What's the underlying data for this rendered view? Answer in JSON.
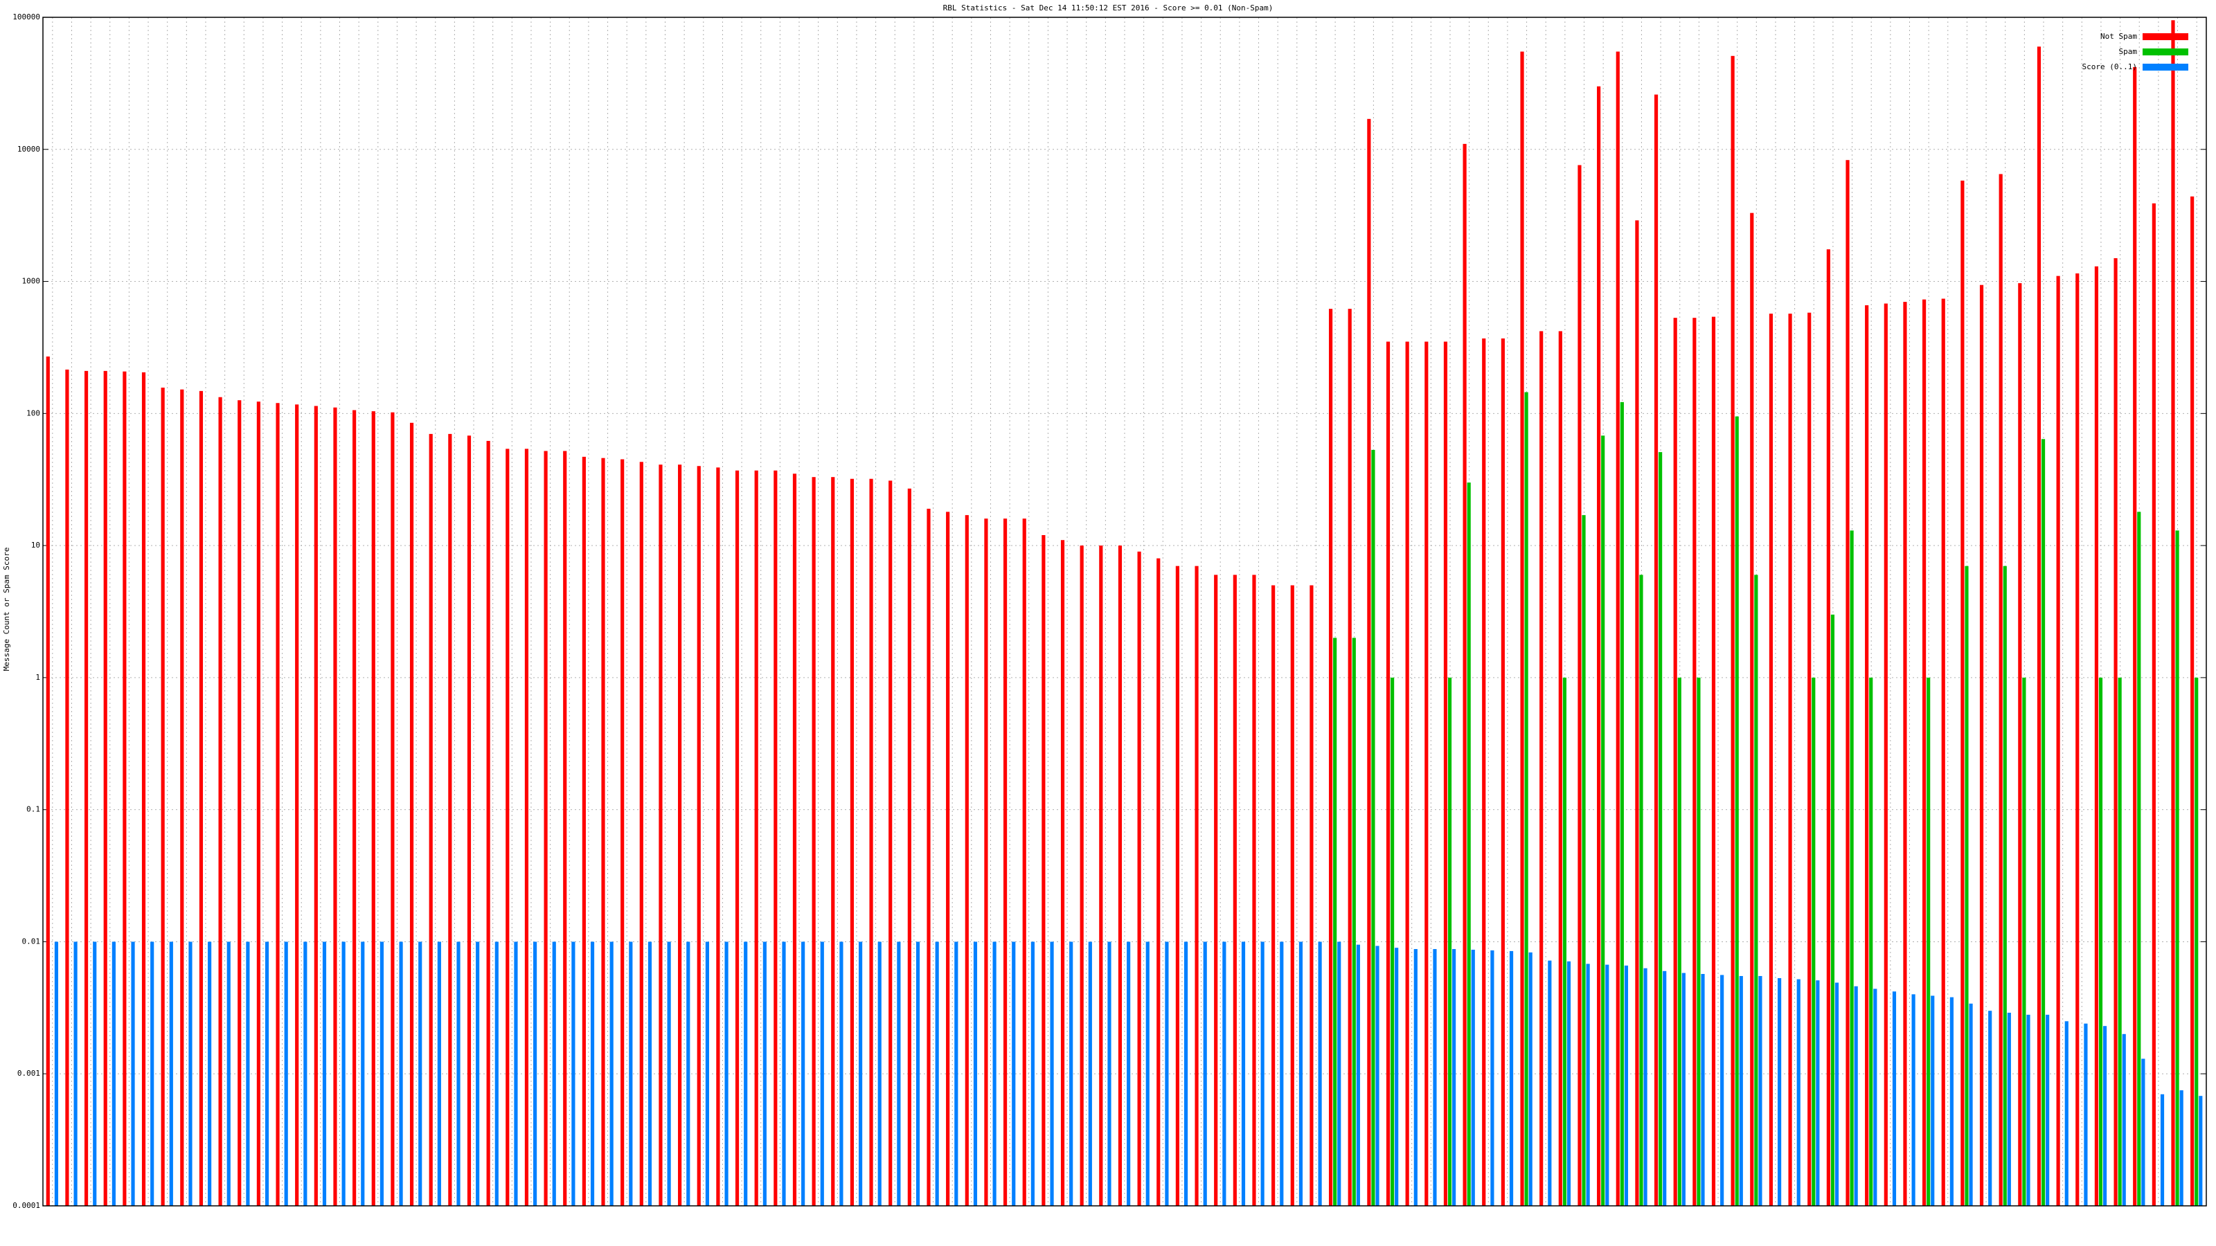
{
  "chart_data": {
    "type": "bar",
    "title": "RBL Statistics - Sat Dec 14 11:50:12 EST 2016 - Score >= 0.01 (Non-Spam)",
    "y_label": "Message Count or Spam Score",
    "log_y": true,
    "grid": true,
    "legend": "top-right",
    "ylim": [
      0.0001,
      100000
    ],
    "yticks": [
      0.0001,
      0.001,
      0.01,
      0.1,
      1,
      10,
      100,
      1000,
      10000,
      100000
    ],
    "categories": [
      null,
      null,
      null,
      null,
      null,
      null,
      null,
      null,
      null,
      null,
      null,
      null,
      null,
      null,
      null,
      null,
      null,
      null,
      null,
      null,
      null,
      null,
      null,
      null,
      null,
      null,
      null,
      null,
      null,
      null,
      null,
      null,
      null,
      null,
      null,
      null,
      null,
      null,
      null,
      null,
      null,
      null,
      null,
      null,
      null,
      null,
      null,
      null,
      null,
      null,
      null,
      null,
      null,
      null,
      null,
      null,
      null,
      null,
      null,
      null,
      null,
      null,
      null,
      null,
      null,
      null,
      null,
      null,
      null,
      null,
      null,
      null,
      null,
      null,
      null,
      null,
      null,
      null,
      null,
      null,
      null,
      null,
      null,
      null,
      null,
      null,
      null,
      null,
      null,
      null,
      null,
      null,
      null,
      null,
      null,
      null,
      null,
      null,
      null,
      null,
      null,
      null,
      null,
      null,
      null,
      null,
      null,
      null,
      null,
      null,
      null,
      null,
      null
    ],
    "series": [
      {
        "name": "Not Spam",
        "color": "#ff0000",
        "values": [
          270,
          215,
          210,
          210,
          208,
          205,
          157,
          152,
          148,
          133,
          126,
          123,
          120,
          117,
          114,
          111,
          106,
          104,
          102,
          85,
          70,
          70,
          68,
          62,
          54,
          54,
          52,
          52,
          47,
          46,
          45,
          43,
          41,
          41,
          40,
          39,
          37,
          37,
          37,
          35,
          33,
          33,
          32,
          32,
          31,
          27,
          19,
          18,
          17,
          16,
          16,
          16,
          12,
          11,
          10,
          10,
          10,
          9,
          8,
          7,
          7,
          6,
          6,
          6,
          5,
          5,
          5,
          620,
          620,
          17000,
          350,
          350,
          350,
          350,
          11000,
          370,
          370,
          55000,
          420,
          420,
          7600,
          30000,
          55000,
          2900,
          26000,
          530,
          530,
          540,
          51000,
          3300,
          570,
          570,
          580,
          1750,
          8300,
          660,
          680,
          700,
          730,
          740,
          5800,
          940,
          6500,
          970,
          60000,
          1100,
          1150,
          1300,
          1500,
          42000,
          3900,
          95000,
          4400
        ]
      },
      {
        "name": "Spam",
        "color": "#00c000",
        "values": [
          null,
          null,
          null,
          null,
          null,
          null,
          null,
          null,
          null,
          null,
          null,
          null,
          null,
          null,
          null,
          null,
          null,
          null,
          null,
          null,
          null,
          null,
          null,
          null,
          null,
          null,
          null,
          null,
          null,
          null,
          null,
          null,
          null,
          null,
          null,
          null,
          null,
          null,
          null,
          null,
          null,
          null,
          null,
          null,
          null,
          null,
          null,
          null,
          null,
          null,
          null,
          null,
          null,
          null,
          null,
          null,
          null,
          null,
          null,
          null,
          null,
          null,
          null,
          null,
          null,
          null,
          null,
          2,
          2,
          53,
          1,
          null,
          null,
          1,
          30,
          null,
          null,
          145,
          null,
          1,
          17,
          68,
          122,
          6,
          51,
          1,
          1,
          null,
          95,
          6,
          null,
          null,
          1,
          3,
          13,
          1,
          null,
          null,
          1,
          null,
          7,
          null,
          7,
          1,
          64,
          null,
          null,
          1,
          1,
          18,
          null,
          13,
          1
        ]
      },
      {
        "name": "Score (0..1)",
        "color": "#0080ff",
        "values": [
          0.01,
          0.01,
          0.01,
          0.01,
          0.01,
          0.01,
          0.01,
          0.01,
          0.01,
          0.01,
          0.01,
          0.01,
          0.01,
          0.01,
          0.01,
          0.01,
          0.01,
          0.01,
          0.01,
          0.01,
          0.01,
          0.01,
          0.01,
          0.01,
          0.01,
          0.01,
          0.01,
          0.01,
          0.01,
          0.01,
          0.01,
          0.01,
          0.01,
          0.01,
          0.01,
          0.01,
          0.01,
          0.01,
          0.01,
          0.01,
          0.01,
          0.01,
          0.01,
          0.01,
          0.01,
          0.01,
          0.01,
          0.01,
          0.01,
          0.01,
          0.01,
          0.01,
          0.01,
          0.01,
          0.01,
          0.01,
          0.01,
          0.01,
          0.01,
          0.01,
          0.01,
          0.01,
          0.01,
          0.01,
          0.01,
          0.01,
          0.01,
          0.01,
          0.0095,
          0.0093,
          0.009,
          0.0088,
          0.0088,
          0.0088,
          0.0087,
          0.0086,
          0.0085,
          0.0083,
          0.0072,
          0.0071,
          0.0068,
          0.0067,
          0.0066,
          0.0063,
          0.006,
          0.0058,
          0.0057,
          0.0056,
          0.0055,
          0.0055,
          0.0053,
          0.0052,
          0.0051,
          0.0049,
          0.0046,
          0.0044,
          0.0042,
          0.004,
          0.0039,
          0.0038,
          0.0034,
          0.003,
          0.0029,
          0.0028,
          0.0028,
          0.0025,
          0.0024,
          0.0023,
          0.002,
          0.0013,
          0.0007,
          0.00075,
          0.00068
        ]
      }
    ]
  }
}
